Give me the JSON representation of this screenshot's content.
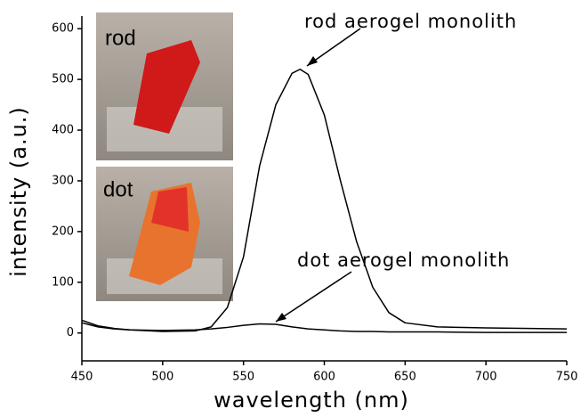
{
  "chart_data": {
    "type": "line",
    "x_label": "wavelength (nm)",
    "y_label": "intensity (a.u.)",
    "xlim": [
      450,
      750
    ],
    "xticks": [
      450,
      500,
      550,
      600,
      650,
      700,
      750
    ],
    "ylim": [
      -55,
      625
    ],
    "yticks": [
      0,
      100,
      200,
      300,
      400,
      500,
      600
    ],
    "grid": false,
    "annotations": [
      "rod aerogel monolith",
      "dot aerogel monolith"
    ],
    "insets": [
      "rod",
      "dot"
    ],
    "x": [
      450,
      460,
      470,
      480,
      500,
      520,
      530,
      540,
      550,
      560,
      570,
      580,
      585,
      590,
      600,
      610,
      620,
      630,
      640,
      650,
      670,
      700,
      750
    ],
    "series": [
      {
        "name": "rod aerogel monolith",
        "color": "#000000",
        "values": [
          25,
          14,
          9,
          6,
          3,
          4,
          12,
          50,
          150,
          330,
          450,
          512,
          520,
          510,
          430,
          300,
          180,
          90,
          40,
          20,
          12,
          10,
          8
        ]
      },
      {
        "name": "dot aerogel monolith",
        "color": "#000000",
        "values": [
          20,
          12,
          8,
          6,
          5,
          6,
          8,
          11,
          15,
          18,
          17,
          12,
          10,
          8,
          6,
          4,
          3,
          3,
          2,
          2,
          2,
          1,
          1
        ]
      }
    ]
  }
}
